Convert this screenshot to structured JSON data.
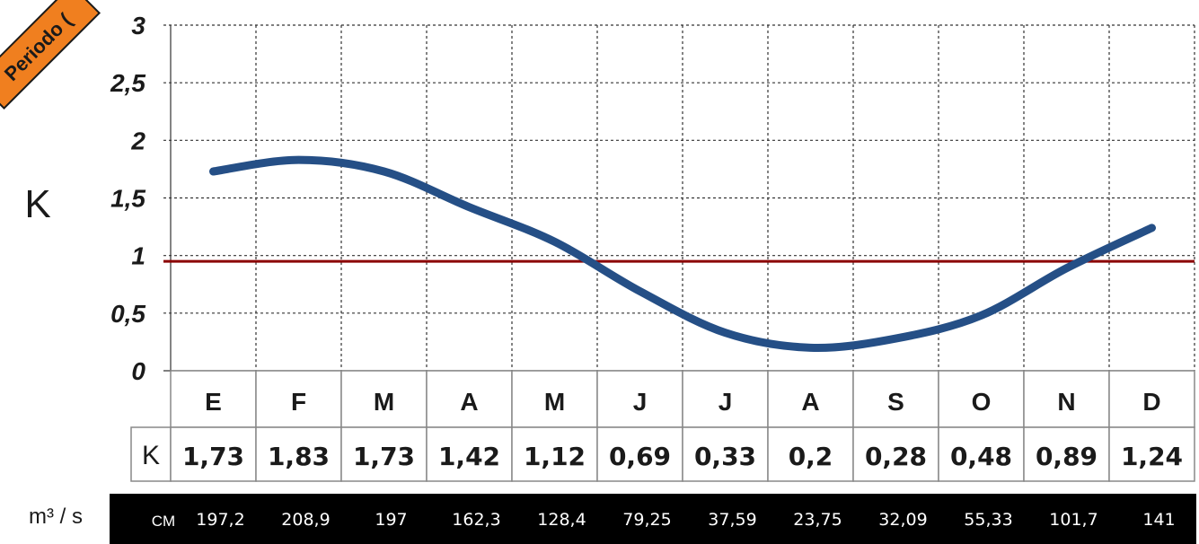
{
  "chart_data": {
    "type": "line",
    "title": "",
    "xlabel": "",
    "ylabel": "K",
    "ylim": [
      0,
      3
    ],
    "yticks": [
      "0",
      "0,5",
      "1",
      "1,5",
      "2",
      "2,5",
      "3"
    ],
    "grid": true,
    "categories": [
      "E",
      "F",
      "M",
      "A",
      "M",
      "J",
      "J",
      "A",
      "S",
      "O",
      "N",
      "D"
    ],
    "series": [
      {
        "values": [
          1.73,
          1.83,
          1.73,
          1.42,
          1.12,
          0.69,
          0.33,
          0.2,
          0.28,
          0.48,
          0.89,
          1.24
        ],
        "color": "#254f86"
      }
    ],
    "reference_line": {
      "value": 0.95,
      "color": "#8b0000"
    },
    "k_row_label": "K",
    "k_labels": [
      "1,73",
      "1,83",
      "1,73",
      "1,42",
      "1,12",
      "0,69",
      "0,33",
      "0,2",
      "0,28",
      "0,48",
      "0,89",
      "1,24"
    ],
    "flow_row_label": "CM",
    "flow_unit": "m³ / s",
    "flow_labels": [
      "197,2",
      "208,9",
      "197",
      "162,3",
      "128,4",
      "79,25",
      "37,59",
      "23,75",
      "32,09",
      "55,33",
      "101,7",
      "141"
    ]
  },
  "badge": {
    "text": "Periodo (",
    "color": "#f07f1f"
  }
}
